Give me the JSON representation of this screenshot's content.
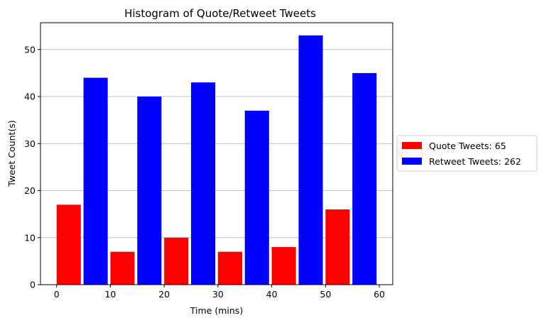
{
  "chart_data": {
    "type": "bar",
    "title": "Histogram of Quote/Retweet Tweets",
    "xlabel": "Time (mins)",
    "ylabel": "Tweet Count(s)",
    "xlim": [
      -3.0,
      62.5
    ],
    "ylim": [
      0,
      55.7
    ],
    "xticks": [
      0,
      10,
      20,
      30,
      40,
      50,
      60
    ],
    "yticks": [
      0,
      10,
      20,
      30,
      40,
      50
    ],
    "grid": "y",
    "legend_position": "right-outside",
    "bins": [
      {
        "start": 0,
        "end": 10
      },
      {
        "start": 10,
        "end": 20
      },
      {
        "start": 20,
        "end": 30
      },
      {
        "start": 30,
        "end": 40
      },
      {
        "start": 40,
        "end": 50
      },
      {
        "start": 50,
        "end": 60
      }
    ],
    "bar_width": 4.5,
    "series": [
      {
        "name": "Quote Tweets: 65",
        "color": "#ff0000",
        "values": [
          17,
          7,
          10,
          7,
          8,
          16
        ]
      },
      {
        "name": "Retweet Tweets: 262",
        "color": "#0000ff",
        "values": [
          44,
          40,
          43,
          37,
          53,
          45
        ]
      }
    ]
  }
}
